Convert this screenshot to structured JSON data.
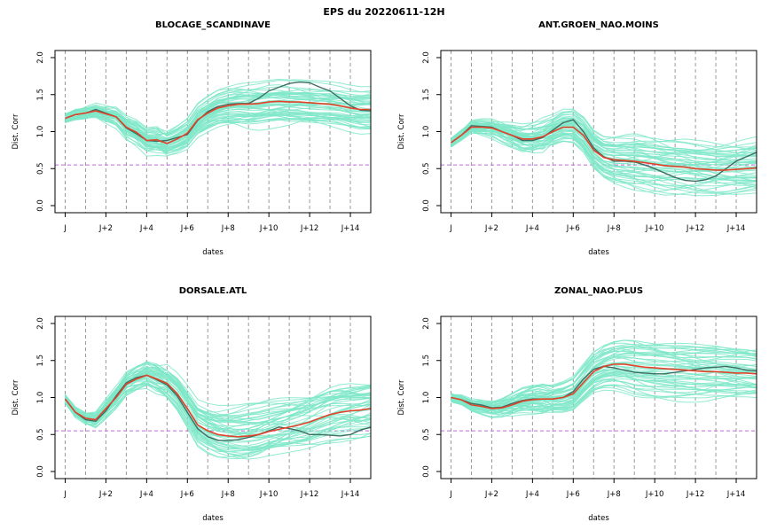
{
  "suptitle": "EPS du 20220611-12H",
  "colors": {
    "ensemble": "#7fe8c8",
    "mean": "#e0432a",
    "control": "#3f6e62",
    "threshold": "#c06adf"
  },
  "chart_data": [
    {
      "type": "line",
      "title": "BLOCAGE_SCANDINAVE",
      "xlabel": "dates",
      "ylabel": "Dist. Corr",
      "ylim": [
        0,
        2.0
      ],
      "yticks": [
        "0.0",
        "0.5",
        "1.0",
        "1.5",
        "2.0"
      ],
      "xtick_labels": [
        "J",
        "J+2",
        "J+4",
        "J+6",
        "J+8",
        "J+10",
        "J+12",
        "J+14"
      ],
      "xlim": [
        -0.5,
        15
      ],
      "threshold": 0.55,
      "x": [
        0,
        0.5,
        1,
        1.5,
        2,
        2.5,
        3,
        3.5,
        4,
        4.5,
        5,
        5.5,
        6,
        6.5,
        7,
        7.5,
        8,
        8.5,
        9,
        9.5,
        10,
        10.5,
        11,
        11.5,
        12,
        12.5,
        13,
        13.5,
        14,
        14.5,
        15
      ],
      "series": [
        {
          "values": [
            1.18,
            1.23,
            1.25,
            1.28,
            1.24,
            1.2,
            1.06,
            0.99,
            0.88,
            0.89,
            0.84,
            0.9,
            0.98,
            1.16,
            1.25,
            1.32,
            1.35,
            1.37,
            1.37,
            1.38,
            1.4,
            1.41,
            1.4,
            1.4,
            1.39,
            1.38,
            1.37,
            1.35,
            1.32,
            1.3,
            1.3
          ]
        },
        {
          "values": [
            1.18,
            1.23,
            1.25,
            1.3,
            1.25,
            1.2,
            1.05,
            0.97,
            0.88,
            0.87,
            0.88,
            0.92,
            0.96,
            1.15,
            1.27,
            1.34,
            1.37,
            1.38,
            1.38,
            1.45,
            1.55,
            1.6,
            1.65,
            1.67,
            1.66,
            1.6,
            1.55,
            1.45,
            1.35,
            1.29,
            1.28
          ]
        }
      ],
      "ensemble": {
        "count": 50,
        "spread_max": 0.42
      }
    },
    {
      "type": "line",
      "title": "ANT.GROEN_NAO.MOINS",
      "xlabel": "dates",
      "ylabel": "Dist. Corr",
      "ylim": [
        0,
        2.0
      ],
      "yticks": [
        "0.0",
        "0.5",
        "1.0",
        "1.5",
        "2.0"
      ],
      "xtick_labels": [
        "J",
        "J+2",
        "J+4",
        "J+6",
        "J+8",
        "J+10",
        "J+12",
        "J+14"
      ],
      "xlim": [
        -0.5,
        15
      ],
      "threshold": 0.55,
      "x": [
        0,
        0.5,
        1,
        1.5,
        2,
        2.5,
        3,
        3.5,
        4,
        4.5,
        5,
        5.5,
        6,
        6.5,
        7,
        7.5,
        8,
        8.5,
        9,
        9.5,
        10,
        10.5,
        11,
        11.5,
        12,
        12.5,
        13,
        13.5,
        14,
        14.5,
        15
      ],
      "series": [
        {
          "values": [
            0.85,
            0.95,
            1.06,
            1.06,
            1.05,
            1.0,
            0.95,
            0.9,
            0.9,
            0.93,
            1.0,
            1.06,
            1.06,
            0.95,
            0.75,
            0.65,
            0.62,
            0.61,
            0.6,
            0.58,
            0.56,
            0.54,
            0.53,
            0.52,
            0.5,
            0.49,
            0.48,
            0.48,
            0.49,
            0.5,
            0.51
          ]
        },
        {
          "values": [
            0.85,
            0.95,
            1.08,
            1.07,
            1.06,
            1.0,
            0.95,
            0.88,
            0.88,
            0.92,
            1.02,
            1.12,
            1.16,
            1.0,
            0.78,
            0.66,
            0.6,
            0.6,
            0.59,
            0.55,
            0.5,
            0.44,
            0.38,
            0.34,
            0.33,
            0.35,
            0.4,
            0.5,
            0.6,
            0.66,
            0.72
          ]
        }
      ],
      "ensemble": {
        "count": 50,
        "spread_max": 0.42
      }
    },
    {
      "type": "line",
      "title": "DORSALE.ATL",
      "xlabel": "dates",
      "ylabel": "Dist. Corr",
      "ylim": [
        0,
        2.0
      ],
      "yticks": [
        "0.0",
        "0.5",
        "1.0",
        "1.5",
        "2.0"
      ],
      "xtick_labels": [
        "J",
        "J+2",
        "J+4",
        "J+6",
        "J+8",
        "J+10",
        "J+12",
        "J+14"
      ],
      "xlim": [
        -0.5,
        15
      ],
      "threshold": 0.55,
      "x": [
        0,
        0.5,
        1,
        1.5,
        2,
        2.5,
        3,
        3.5,
        4,
        4.5,
        5,
        5.5,
        6,
        6.5,
        7,
        7.5,
        8,
        8.5,
        9,
        9.5,
        10,
        10.5,
        11,
        11.5,
        12,
        12.5,
        13,
        13.5,
        14,
        14.5,
        15
      ],
      "series": [
        {
          "values": [
            0.98,
            0.8,
            0.72,
            0.7,
            0.85,
            1.0,
            1.18,
            1.25,
            1.3,
            1.25,
            1.19,
            1.05,
            0.85,
            0.63,
            0.55,
            0.5,
            0.48,
            0.47,
            0.48,
            0.5,
            0.54,
            0.57,
            0.6,
            0.63,
            0.67,
            0.72,
            0.77,
            0.8,
            0.82,
            0.83,
            0.85
          ]
        },
        {
          "values": [
            0.98,
            0.8,
            0.7,
            0.68,
            0.82,
            1.02,
            1.2,
            1.27,
            1.3,
            1.24,
            1.17,
            1.02,
            0.8,
            0.58,
            0.47,
            0.42,
            0.42,
            0.43,
            0.46,
            0.5,
            0.55,
            0.6,
            0.58,
            0.55,
            0.5,
            0.5,
            0.49,
            0.48,
            0.5,
            0.56,
            0.6
          ]
        }
      ],
      "ensemble": {
        "count": 50,
        "spread_max": 0.45
      }
    },
    {
      "type": "line",
      "title": "ZONAL_NAO.PLUS",
      "xlabel": "dates",
      "ylabel": "Dist. Corr",
      "ylim": [
        0,
        2.0
      ],
      "yticks": [
        "0.0",
        "0.5",
        "1.0",
        "1.5",
        "2.0"
      ],
      "xtick_labels": [
        "J",
        "J+2",
        "J+4",
        "J+6",
        "J+8",
        "J+10",
        "J+12",
        "J+14"
      ],
      "xlim": [
        -0.5,
        15
      ],
      "threshold": 0.55,
      "x": [
        0,
        0.5,
        1,
        1.5,
        2,
        2.5,
        3,
        3.5,
        4,
        4.5,
        5,
        5.5,
        6,
        6.5,
        7,
        7.5,
        8,
        8.5,
        9,
        9.5,
        10,
        10.5,
        11,
        11.5,
        12,
        12.5,
        13,
        13.5,
        14,
        14.5,
        15
      ],
      "series": [
        {
          "values": [
            1.0,
            0.97,
            0.9,
            0.88,
            0.85,
            0.86,
            0.9,
            0.95,
            0.97,
            0.98,
            0.98,
            1.0,
            1.05,
            1.2,
            1.35,
            1.42,
            1.45,
            1.45,
            1.43,
            1.41,
            1.4,
            1.39,
            1.38,
            1.37,
            1.36,
            1.35,
            1.35,
            1.34,
            1.33,
            1.33,
            1.32
          ]
        },
        {
          "values": [
            1.0,
            0.97,
            0.92,
            0.9,
            0.86,
            0.87,
            0.92,
            0.96,
            0.98,
            0.98,
            0.98,
            1.0,
            1.08,
            1.25,
            1.38,
            1.42,
            1.4,
            1.37,
            1.34,
            1.33,
            1.32,
            1.32,
            1.34,
            1.36,
            1.38,
            1.4,
            1.41,
            1.42,
            1.4,
            1.37,
            1.36
          ]
        }
      ],
      "ensemble": {
        "count": 50,
        "spread_max": 0.42
      }
    }
  ]
}
